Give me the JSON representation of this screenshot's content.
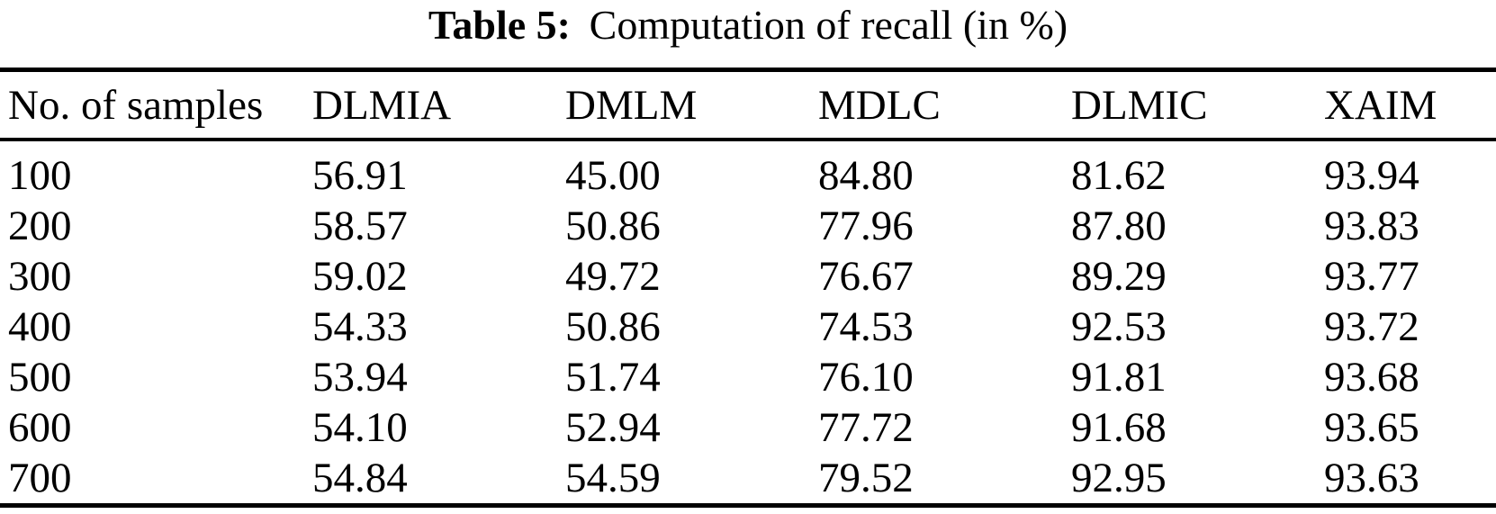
{
  "title": {
    "label": "Table 5:",
    "text": "Computation of recall (in %)"
  },
  "table": {
    "columns": [
      "No. of samples",
      "DLMIA",
      "DMLM",
      "MDLC",
      "DLMIC",
      "XAIM"
    ],
    "rows": [
      [
        "100",
        "56.91",
        "45.00",
        "84.80",
        "81.62",
        "93.94"
      ],
      [
        "200",
        "58.57",
        "50.86",
        "77.96",
        "87.80",
        "93.83"
      ],
      [
        "300",
        "59.02",
        "49.72",
        "76.67",
        "89.29",
        "93.77"
      ],
      [
        "400",
        "54.33",
        "50.86",
        "74.53",
        "92.53",
        "93.72"
      ],
      [
        "500",
        "53.94",
        "51.74",
        "76.10",
        "91.81",
        "93.68"
      ],
      [
        "600",
        "54.10",
        "52.94",
        "77.72",
        "91.68",
        "93.65"
      ],
      [
        "700",
        "54.84",
        "54.59",
        "79.52",
        "92.95",
        "93.63"
      ]
    ]
  },
  "colors": {
    "text": "#000000",
    "background": "#ffffff",
    "rule": "#000000"
  }
}
